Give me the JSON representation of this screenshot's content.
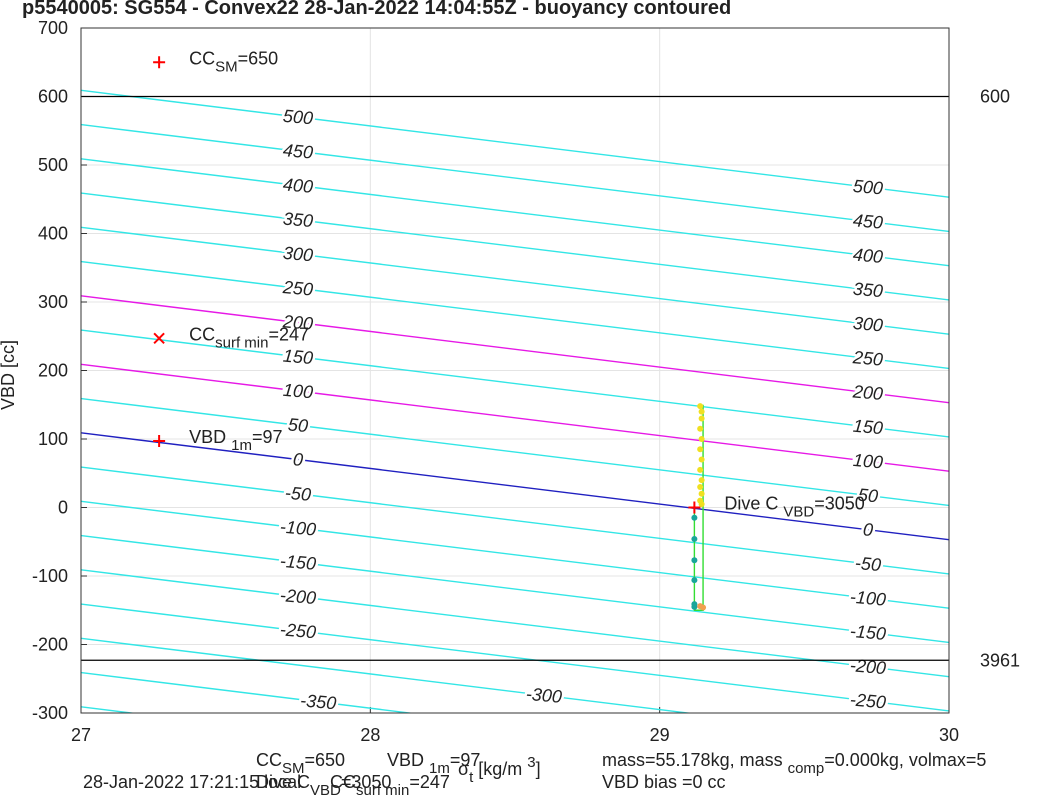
{
  "chart_data": {
    "type": "contour",
    "title": "p5540005: SG554 - Convex22 28-Jan-2022 14:04:55Z - buoyancy contoured",
    "ylabel": "VBD [cc]",
    "xlim": [
      27,
      30
    ],
    "ylim": [
      -300,
      700
    ],
    "xticks": [
      27,
      28,
      29,
      30
    ],
    "yticks": [
      -300,
      -200,
      -100,
      0,
      100,
      200,
      300,
      400,
      500,
      600,
      700
    ],
    "grid": true,
    "x": [
      27,
      30
    ],
    "series": [
      {
        "name": "500",
        "color": "#33e6e6",
        "values": [
          609,
          453
        ]
      },
      {
        "name": "450",
        "color": "#33e6e6",
        "values": [
          559,
          403
        ]
      },
      {
        "name": "400",
        "color": "#33e6e6",
        "values": [
          509,
          353
        ]
      },
      {
        "name": "350",
        "color": "#33e6e6",
        "values": [
          459,
          303
        ]
      },
      {
        "name": "300",
        "color": "#33e6e6",
        "values": [
          409,
          253
        ]
      },
      {
        "name": "250",
        "color": "#33e6e6",
        "values": [
          359,
          203
        ]
      },
      {
        "name": "200",
        "color": "#e619e6",
        "values": [
          309,
          153
        ]
      },
      {
        "name": "150",
        "color": "#33e6e6",
        "values": [
          259,
          103
        ]
      },
      {
        "name": "100",
        "color": "#e619e6",
        "values": [
          209,
          53
        ]
      },
      {
        "name": "50",
        "color": "#33e6e6",
        "values": [
          159,
          3
        ]
      },
      {
        "name": "0",
        "color": "#2020c0",
        "values": [
          109,
          -47
        ]
      },
      {
        "name": "-50",
        "color": "#33e6e6",
        "values": [
          59,
          -97
        ]
      },
      {
        "name": "-100",
        "color": "#33e6e6",
        "values": [
          9,
          -147
        ]
      },
      {
        "name": "-150",
        "color": "#33e6e6",
        "values": [
          -41,
          -197
        ]
      },
      {
        "name": "-200",
        "color": "#33e6e6",
        "values": [
          -91,
          -247
        ]
      },
      {
        "name": "-250",
        "color": "#33e6e6",
        "values": [
          -141,
          -297
        ]
      },
      {
        "name": "-300",
        "color": "#33e6e6",
        "values": [
          -191,
          -347
        ]
      },
      {
        "name": "-350",
        "color": "#33e6e6",
        "values": [
          -241,
          -397
        ]
      },
      {
        "color": "#33e6e6",
        "values": [
          -291,
          -447
        ]
      }
    ],
    "hlines": [
      {
        "value": 600,
        "label": "600"
      },
      {
        "value": -223,
        "label": "3961"
      }
    ],
    "dive_line": {
      "color": "#33dd33",
      "x": [
        29.12,
        29.12,
        29.15,
        29.15
      ],
      "values": [
        0,
        -150,
        -150,
        150
      ]
    },
    "points": [
      {
        "color": "#1aa59a",
        "x": [
          29.12,
          29.12,
          29.12,
          29.12,
          29.12,
          29.12
        ],
        "values": [
          -15,
          -46,
          -77,
          -106,
          -141,
          -145
        ]
      },
      {
        "color": "#f0e020",
        "x": [
          29.14,
          29.145,
          29.145,
          29.14,
          29.145,
          29.14,
          29.145,
          29.14,
          29.145,
          29.14,
          29.145,
          29.14,
          29.145
        ],
        "values": [
          148,
          140,
          130,
          115,
          100,
          85,
          70,
          55,
          40,
          30,
          20,
          10,
          5
        ]
      },
      {
        "color": "#f0a050",
        "x": [
          29.14,
          29.15
        ],
        "values": [
          -144,
          -146
        ]
      }
    ],
    "markers": [
      {
        "x": 27.27,
        "y": 650,
        "symbol": "plus",
        "color": "#ff0000",
        "segments": [
          {
            "text": "CC"
          },
          {
            "text": "SM",
            "shift": "sub"
          },
          {
            "text": "=650"
          }
        ]
      },
      {
        "x": 27.27,
        "y": 247,
        "symbol": "cross",
        "color": "#ff0000",
        "segments": [
          {
            "text": "CC"
          },
          {
            "text": "surf min",
            "shift": "sub"
          },
          {
            "text": "=247"
          }
        ]
      },
      {
        "x": 27.27,
        "y": 97,
        "symbol": "plus",
        "color": "#ff0000",
        "segments": [
          {
            "text": "VBD "
          },
          {
            "text": "1m",
            "shift": "sub"
          },
          {
            "text": "=97"
          }
        ]
      },
      {
        "x": 29.12,
        "y": 0,
        "symbol": "plus",
        "color": "#ff0000",
        "segments": [
          {
            "text": "Dive C "
          },
          {
            "text": "VBD",
            "shift": "sub"
          },
          {
            "text": "=3050"
          }
        ]
      }
    ],
    "footer": [
      {
        "segments": [
          {
            "text": "CC"
          },
          {
            "text": "SM",
            "shift": "sub"
          },
          {
            "text": "=650"
          }
        ]
      },
      {
        "segments": [
          {
            "text": "VBD "
          },
          {
            "text": "1m",
            "shift": "sub"
          },
          {
            "text": "=97"
          }
        ]
      },
      {
        "segments": [
          {
            "text": "σ"
          },
          {
            "text": "t",
            "shift": "sub"
          },
          {
            "text": " [kg/m "
          },
          {
            "text": "3",
            "shift": "super"
          },
          {
            "text": "]"
          }
        ]
      },
      {
        "segments": [
          {
            "text": "mass=55.178kg, mass "
          },
          {
            "text": "comp",
            "shift": "sub"
          },
          {
            "text": "=0.000kg, volmax=5"
          }
        ]
      },
      {
        "segments": [
          {
            "text": "28-Jan-2022 17:21:15 local"
          }
        ]
      },
      {
        "segments": [
          {
            "text": "Dive C"
          },
          {
            "text": "VBD",
            "shift": "sub"
          },
          {
            "text": "=3050"
          }
        ]
      },
      {
        "segments": [
          {
            "text": "CC"
          },
          {
            "text": "surf min",
            "shift": "sub"
          },
          {
            "text": "=247"
          }
        ]
      },
      {
        "segments": [
          {
            "text": "VBD bias =0 cc"
          }
        ]
      }
    ]
  }
}
